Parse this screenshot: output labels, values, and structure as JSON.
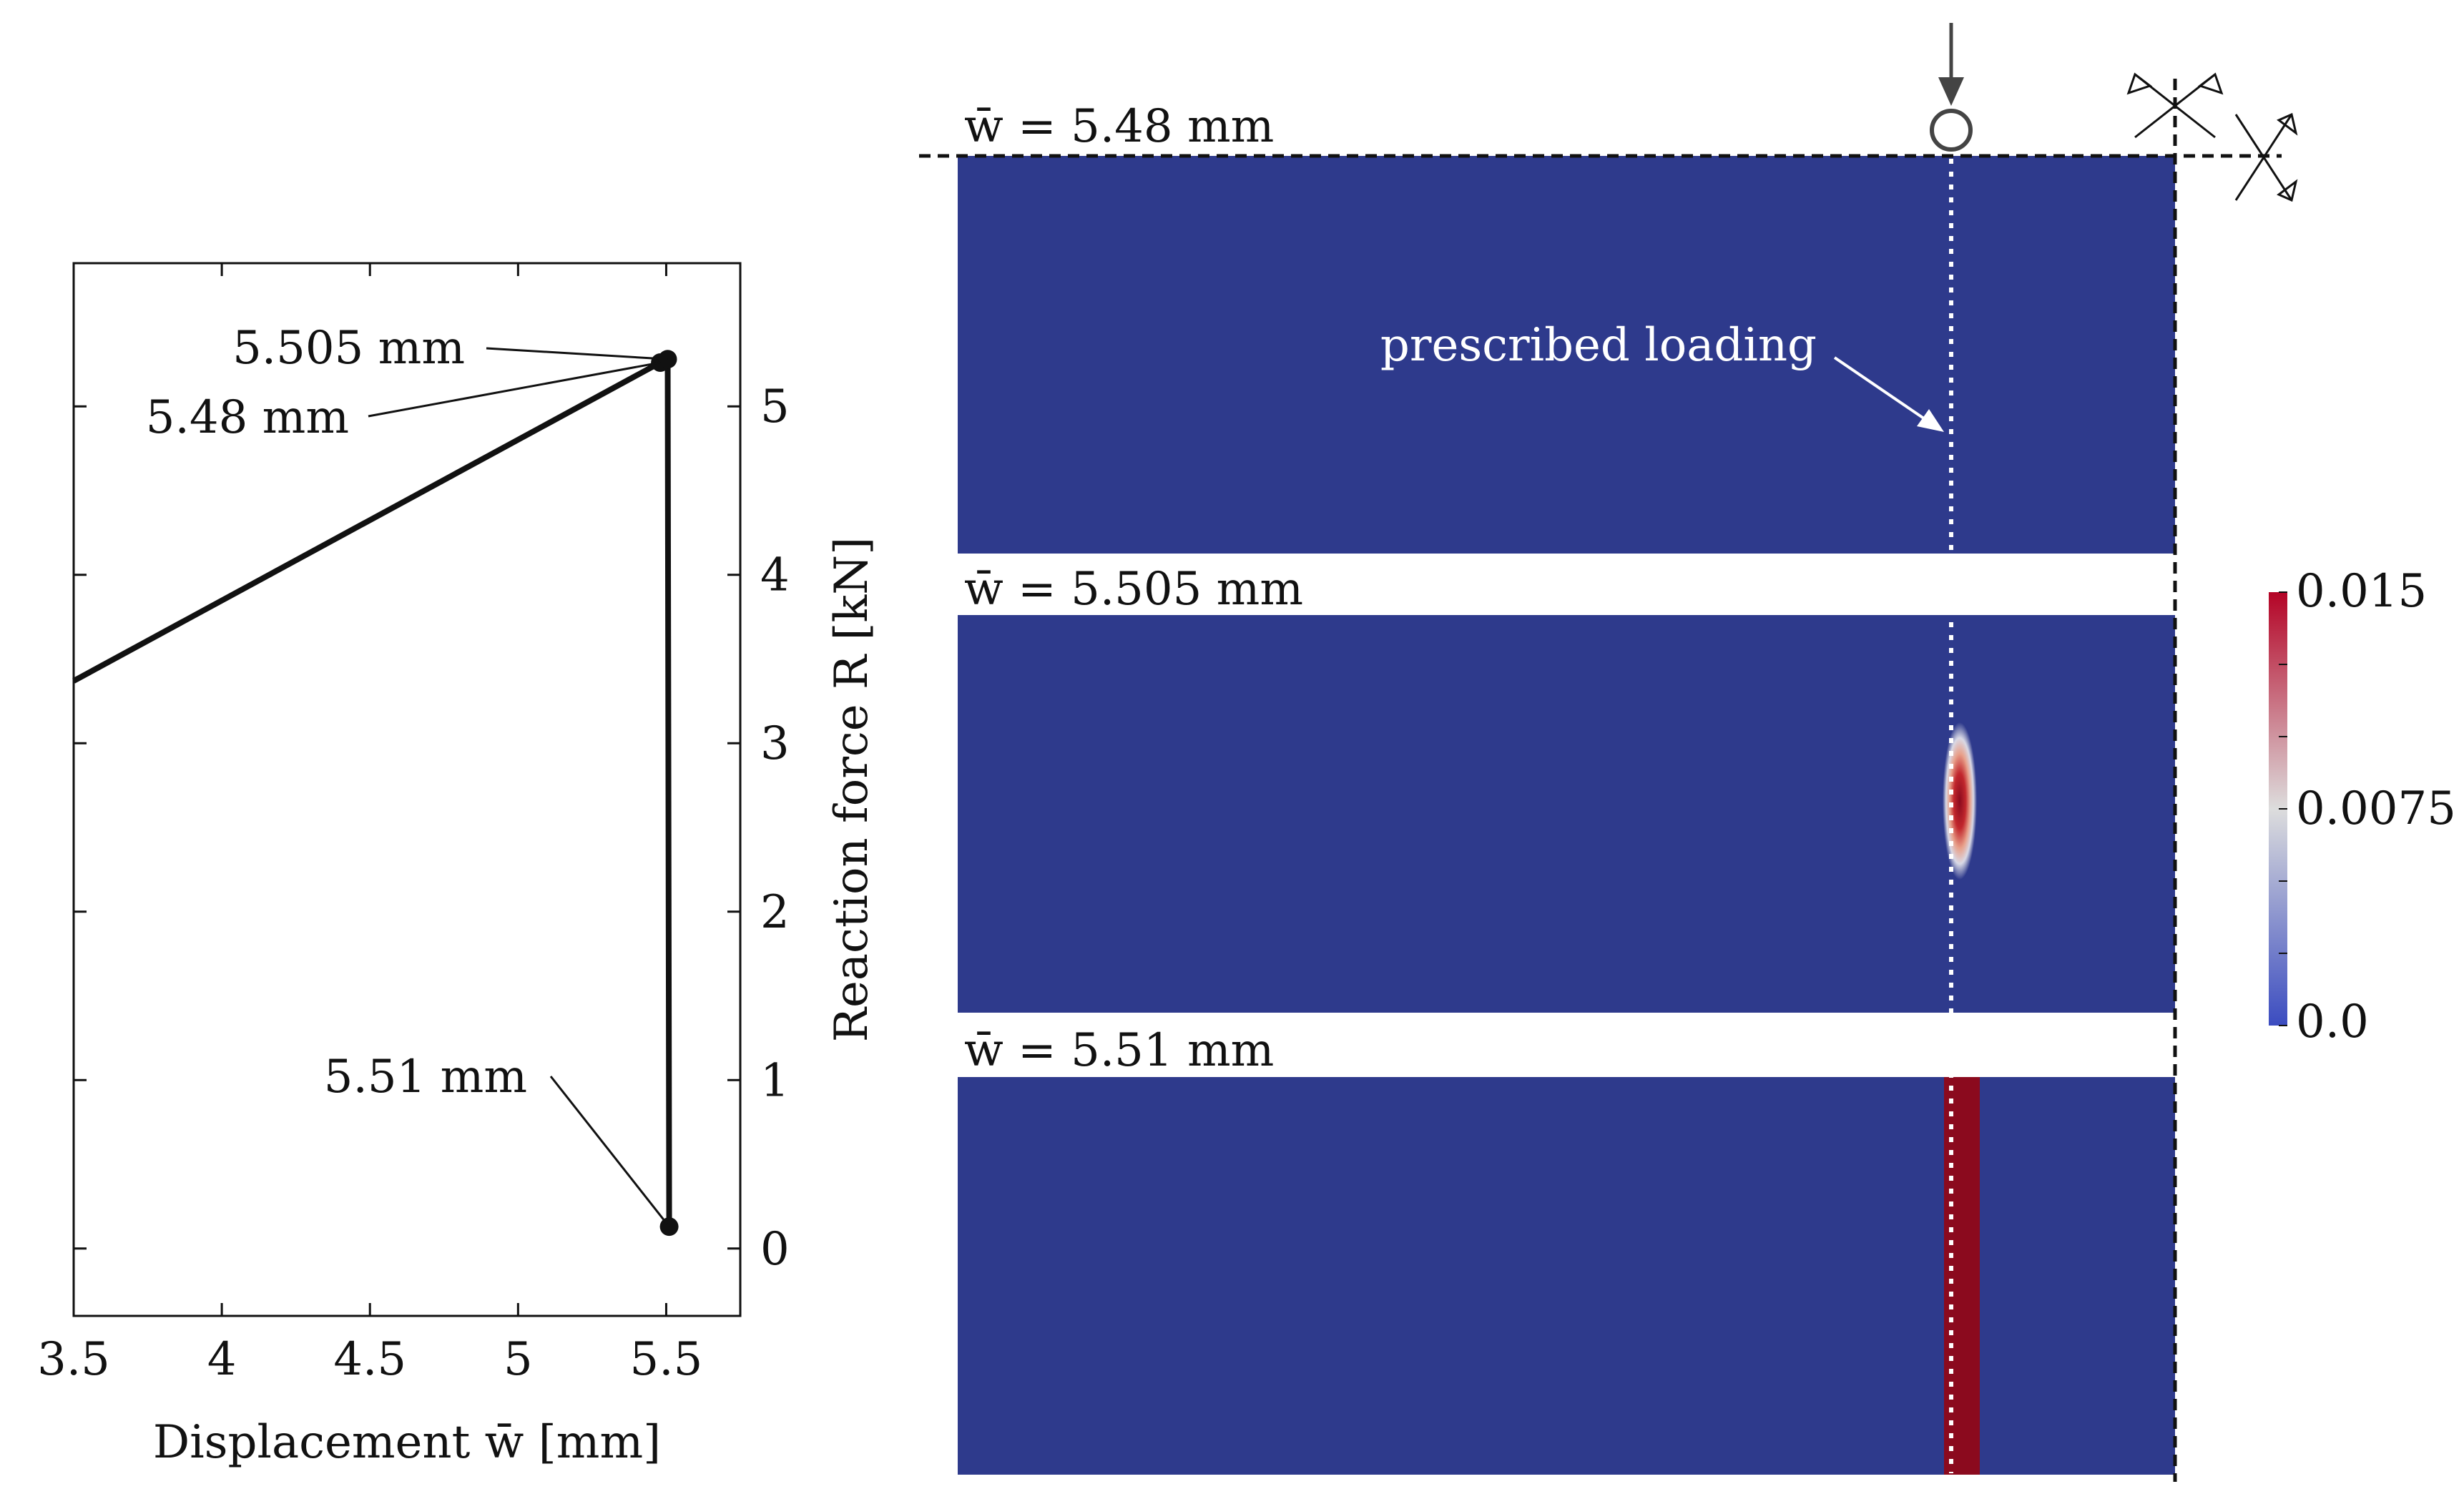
{
  "chart_data": [
    {
      "type": "line",
      "xlabel": "Displacement w̄ [mm]",
      "ylabel": "Reaction force R [kN]",
      "xlim": [
        3.5,
        5.75
      ],
      "ylim": [
        -0.4,
        5.85
      ],
      "x_ticks": [
        "3.5",
        "4",
        "4.5",
        "5",
        "5.5"
      ],
      "x_tick_values": [
        3.5,
        4,
        4.5,
        5,
        5.5
      ],
      "y_ticks": [
        "0",
        "1",
        "2",
        "3",
        "4",
        "5"
      ],
      "y_tick_values": [
        0,
        1,
        2,
        3,
        4,
        5
      ],
      "y_axis_side": "right",
      "series": [
        {
          "x": [
            3.5,
            5.48,
            5.505,
            5.51
          ],
          "y": [
            3.37,
            5.26,
            5.28,
            0.13
          ]
        }
      ],
      "markers": [
        {
          "x": 5.48,
          "y": 5.26
        },
        {
          "x": 5.505,
          "y": 5.28
        },
        {
          "x": 5.51,
          "y": 0.13
        }
      ],
      "annotations": [
        {
          "text": "5.505 mm",
          "points_to": {
            "x": 5.505,
            "y": 5.28
          }
        },
        {
          "text": "5.48 mm",
          "points_to": {
            "x": 5.48,
            "y": 5.26
          }
        },
        {
          "text": "5.51 mm",
          "points_to": {
            "x": 5.51,
            "y": 0.13
          }
        }
      ]
    },
    {
      "type": "heatmap",
      "panels": [
        {
          "label": "w̄ = 5.48 mm",
          "state": "undamaged"
        },
        {
          "label": "w̄ = 5.505 mm",
          "state": "damage initiation"
        },
        {
          "label": "w̄ = 5.51 mm",
          "state": "crack through thickness"
        }
      ],
      "annotation": "prescribed loading",
      "colorbar": {
        "min": 0.0,
        "max": 0.015,
        "tick_labels": [
          "0.015",
          "0.0075",
          "0.0"
        ],
        "tick_values": [
          0.015,
          0.0075,
          0.0
        ],
        "colors": [
          "#3b4cc0",
          "#dddddd",
          "#b40426"
        ]
      },
      "background_color": "#2e3a8c",
      "crack_color": "#8b0a1e"
    }
  ]
}
